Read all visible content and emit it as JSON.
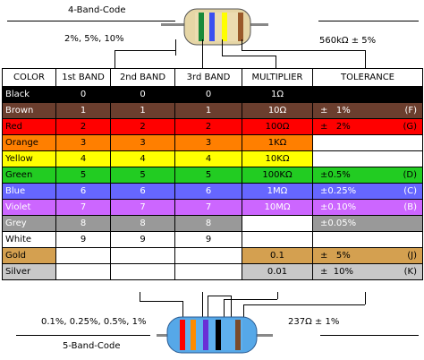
{
  "four_band": {
    "title": "4-Band-Code",
    "left_note": "2%, 5%, 10%",
    "right_note": "560kΩ ± 5%",
    "bands": [
      "#1a8a3a",
      "#3b4ff0",
      "#ffff00",
      "#9a5a2a"
    ]
  },
  "five_band": {
    "title": "5-Band-Code",
    "left_note": "0.1%, 0.25%, 0.5%, 1%",
    "right_note": "237Ω ± 1%",
    "bands": [
      "#ff0000",
      "#ff8c00",
      "#6a2fd6",
      "#000000",
      "#7a4a2a"
    ]
  },
  "table": {
    "headers": [
      "COLOR",
      "1st BAND",
      "2nd BAND",
      "3rd BAND",
      "MULTIPLIER",
      "TOLERANCE"
    ],
    "rows": [
      {
        "name": "Black",
        "b1": "0",
        "b2": "0",
        "b3": "0",
        "mult": "1Ω",
        "tol": "",
        "code": "",
        "bg": "#000000",
        "fg": "#ffffff"
      },
      {
        "name": "Brown",
        "b1": "1",
        "b2": "1",
        "b3": "1",
        "mult": "10Ω",
        "tol": "±   1%",
        "code": "(F)",
        "bg": "#6b3e2e",
        "fg": "#ffffff"
      },
      {
        "name": "Red",
        "b1": "2",
        "b2": "2",
        "b3": "2",
        "mult": "100Ω",
        "tol": "±   2%",
        "code": "(G)",
        "bg": "#ff0000",
        "fg": "#000000"
      },
      {
        "name": "Orange",
        "b1": "3",
        "b2": "3",
        "b3": "3",
        "mult": "1KΩ",
        "tol": "",
        "code": "",
        "bg": "#ff7f00",
        "fg": "#000000"
      },
      {
        "name": "Yellow",
        "b1": "4",
        "b2": "4",
        "b3": "4",
        "mult": "10KΩ",
        "tol": "",
        "code": "",
        "bg": "#ffff00",
        "fg": "#000000"
      },
      {
        "name": "Green",
        "b1": "5",
        "b2": "5",
        "b3": "5",
        "mult": "100KΩ",
        "tol": "±0.5%",
        "code": "(D)",
        "bg": "#22cc22",
        "fg": "#000000"
      },
      {
        "name": "Blue",
        "b1": "6",
        "b2": "6",
        "b3": "6",
        "mult": "1MΩ",
        "tol": "±0.25%",
        "code": "(C)",
        "bg": "#6666ff",
        "fg": "#ffffff"
      },
      {
        "name": "Violet",
        "b1": "7",
        "b2": "7",
        "b3": "7",
        "mult": "10MΩ",
        "tol": "±0.10%",
        "code": "(B)",
        "bg": "#cc66ff",
        "fg": "#ffffff"
      },
      {
        "name": "Grey",
        "b1": "8",
        "b2": "8",
        "b3": "8",
        "mult": "",
        "tol": "±0.05%",
        "code": "",
        "bg": "#999999",
        "fg": "#ffffff"
      },
      {
        "name": "White",
        "b1": "9",
        "b2": "9",
        "b3": "9",
        "mult": "",
        "tol": "",
        "code": "",
        "bg": "#ffffff",
        "fg": "#000000"
      },
      {
        "name": "Gold",
        "b1": "",
        "b2": "",
        "b3": "",
        "mult": "0.1",
        "tol": "±   5%",
        "code": "(J)",
        "bg": "#d4a050",
        "fg": "#000000"
      },
      {
        "name": "Silver",
        "b1": "",
        "b2": "",
        "b3": "",
        "mult": "0.01",
        "tol": "±  10%",
        "code": "(K)",
        "bg": "#c8c8c8",
        "fg": "#000000"
      }
    ]
  }
}
